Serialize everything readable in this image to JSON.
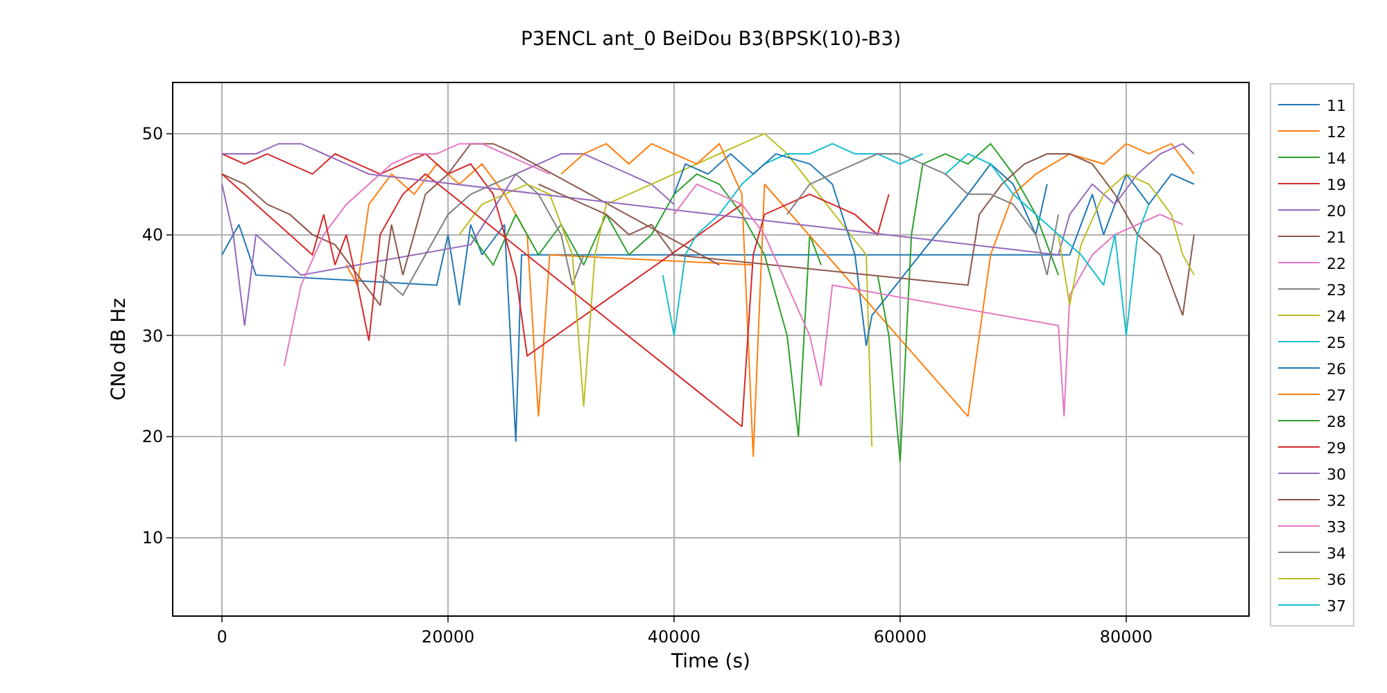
{
  "chart_data": {
    "type": "line",
    "title": "P3ENCL ant_0 BeiDou B3(BPSK(10)-B3)",
    "xlabel": "Time (s)",
    "ylabel": "CNo dB Hz",
    "xlim": [
      -4300,
      90800
    ],
    "ylim": [
      2.3,
      55
    ],
    "xticks": [
      0,
      20000,
      40000,
      60000,
      80000
    ],
    "yticks": [
      10,
      20,
      30,
      40,
      50
    ],
    "grid": true,
    "legend": "right",
    "marker": "none",
    "line_style": "solid",
    "series": [
      {
        "name": "11",
        "color": "#1f77b4",
        "x": [
          0,
          1500,
          3000,
          19000,
          20000,
          21000,
          22000,
          23000,
          25000,
          26000,
          26500,
          75000,
          77000,
          78000,
          80000,
          82000,
          84000,
          86000
        ],
        "values": [
          38,
          41,
          36,
          35,
          40,
          33,
          41,
          38,
          41,
          19.5,
          38,
          38,
          44,
          40,
          46,
          43,
          46,
          45
        ]
      },
      {
        "name": "12",
        "color": "#ff7f0e",
        "x": [
          11000,
          12000,
          13000,
          15000,
          17000,
          19000,
          21000,
          23000,
          25000,
          27000,
          28000,
          29000,
          47000
        ],
        "values": [
          37,
          35,
          43,
          46,
          44,
          47,
          45,
          47,
          44,
          40,
          22,
          38,
          37
        ]
      },
      {
        "name": "14",
        "color": "#2ca02c",
        "x": [
          22000,
          24000,
          26000,
          28000,
          30000,
          32000,
          34000,
          36000,
          38000,
          40000,
          42000,
          44000,
          46000,
          48000,
          50000,
          51000,
          52000,
          53000
        ],
        "values": [
          40,
          37,
          42,
          38,
          41,
          37,
          42,
          38,
          40,
          44,
          46,
          45,
          42,
          38,
          30,
          20,
          40,
          37
        ]
      },
      {
        "name": "19",
        "color": "#d62728",
        "x": [
          0,
          2000,
          4000,
          6000,
          8000,
          10000,
          12000,
          14000,
          16000,
          18000,
          20000,
          22000,
          24000,
          26000,
          27000,
          46000
        ],
        "values": [
          48,
          47,
          48,
          47,
          46,
          48,
          47,
          46,
          47,
          48,
          46,
          47,
          44,
          36,
          28,
          43
        ]
      },
      {
        "name": "20",
        "color": "#9467bd",
        "x": [
          0,
          1000,
          2000,
          3000,
          5000,
          7000,
          22000,
          26000,
          28000,
          30000,
          32000,
          34000,
          36000,
          38000,
          40000
        ],
        "values": [
          45,
          40,
          31,
          40,
          38,
          36,
          39,
          46,
          47,
          48,
          48,
          47,
          46,
          45,
          43
        ]
      },
      {
        "name": "21",
        "color": "#8c564b",
        "x": [
          0,
          2000,
          4000,
          6000,
          8000,
          10000,
          14000,
          15000,
          16000,
          18000,
          20000,
          22000,
          24000,
          26000,
          44000
        ],
        "values": [
          46,
          45,
          43,
          42,
          40,
          39,
          33,
          41,
          36,
          44,
          46,
          49,
          49,
          48,
          37
        ]
      },
      {
        "name": "22",
        "color": "#e377c2",
        "x": [
          5500,
          7000,
          9000,
          11000,
          13000,
          15000,
          17000,
          19000,
          21000,
          23000,
          25000,
          27000,
          29000
        ],
        "values": [
          27,
          35,
          40,
          43,
          45,
          47,
          48,
          48,
          49,
          49,
          48,
          47,
          46
        ]
      },
      {
        "name": "23",
        "color": "#7f7f7f",
        "x": [
          14000,
          16000,
          18000,
          20000,
          22000,
          24000,
          26000,
          28000,
          30000,
          31000,
          32000
        ],
        "values": [
          36,
          34,
          38,
          42,
          44,
          45,
          46,
          44,
          40,
          35,
          38
        ]
      },
      {
        "name": "24",
        "color": "#bcbd22",
        "x": [
          21000,
          23000,
          25000,
          27000,
          29000,
          31000,
          32000,
          33000,
          34000,
          44000,
          46000,
          48000,
          50000,
          57000,
          57500
        ],
        "values": [
          40,
          43,
          44,
          45,
          44,
          38,
          23,
          38,
          43,
          48,
          49,
          50,
          48,
          38,
          19
        ]
      },
      {
        "name": "25",
        "color": "#17becf",
        "x": [
          39000,
          40000,
          41000,
          42000,
          44000,
          46000,
          48000,
          50000,
          52000,
          54000,
          56000,
          58000,
          60000,
          62000
        ],
        "values": [
          36,
          30,
          38,
          40,
          42,
          45,
          47,
          48,
          48,
          49,
          48,
          48,
          47,
          48
        ]
      },
      {
        "name": "26",
        "color": "#1f77b4",
        "x": [
          40000,
          41000,
          43000,
          45000,
          47000,
          49000,
          52000,
          54000,
          56000,
          57000,
          57500,
          66000,
          68000,
          70000,
          72000,
          73000
        ],
        "values": [
          44,
          47,
          46,
          48,
          46,
          48,
          47,
          45,
          38,
          29,
          32,
          44,
          47,
          45,
          40,
          45
        ]
      },
      {
        "name": "27",
        "color": "#ff7f0e",
        "x": [
          30000,
          32000,
          34000,
          36000,
          38000,
          40000,
          42000,
          44000,
          46000,
          47000,
          48000,
          66000,
          67000,
          68000,
          70000,
          72000,
          75000,
          78000,
          80000,
          82000,
          84000,
          86000
        ],
        "values": [
          46,
          48,
          49,
          47,
          49,
          48,
          47,
          49,
          44,
          18,
          45,
          22,
          30,
          38,
          44,
          46,
          48,
          47,
          49,
          48,
          49,
          46
        ]
      },
      {
        "name": "28",
        "color": "#2ca02c",
        "x": [
          58000,
          59000,
          60000,
          61000,
          62000,
          64000,
          66000,
          68000,
          70000,
          72000,
          74000
        ],
        "values": [
          36,
          30,
          17.5,
          40,
          47,
          48,
          47,
          49,
          46,
          42,
          36
        ]
      },
      {
        "name": "29",
        "color": "#d62728",
        "x": [
          0,
          2000,
          4000,
          6000,
          8000,
          9000,
          10000,
          11000,
          12000,
          13000,
          14000,
          16000,
          18000,
          46000,
          47000,
          48000,
          50000,
          52000,
          54000,
          56000,
          58000,
          59000
        ],
        "values": [
          46,
          44,
          42,
          40,
          38,
          42,
          37,
          40,
          35,
          29.5,
          40,
          44,
          46,
          21,
          38,
          42,
          43,
          44,
          43,
          42,
          40,
          44
        ]
      },
      {
        "name": "30",
        "color": "#9467bd",
        "x": [
          0,
          3000,
          5000,
          7000,
          9000,
          11000,
          13000,
          74000,
          75000,
          77000,
          79000,
          81000,
          83000,
          85000,
          86000
        ],
        "values": [
          48,
          48,
          49,
          49,
          48,
          47,
          46,
          38,
          42,
          45,
          43,
          46,
          48,
          49,
          48
        ]
      },
      {
        "name": "32",
        "color": "#8c564b",
        "x": [
          28000,
          30000,
          32000,
          34000,
          36000,
          38000,
          40000,
          66000,
          67000,
          69000,
          71000,
          73000,
          75000,
          77000,
          79000,
          81000,
          83000,
          85000,
          86000
        ],
        "values": [
          45,
          44,
          43,
          42,
          40,
          41,
          38,
          35,
          42,
          45,
          47,
          48,
          48,
          47,
          44,
          40,
          38,
          32,
          40
        ]
      },
      {
        "name": "33",
        "color": "#e377c2",
        "x": [
          40000,
          42000,
          44000,
          46000,
          48000,
          50000,
          52000,
          53000,
          54000,
          74000,
          74500,
          75000,
          77000,
          79000,
          81000,
          83000,
          85000
        ],
        "values": [
          42,
          45,
          44,
          43,
          40,
          35,
          30,
          25,
          35,
          31,
          22,
          34,
          38,
          40,
          41,
          42,
          41
        ]
      },
      {
        "name": "34",
        "color": "#7f7f7f",
        "x": [
          50000,
          52000,
          54000,
          56000,
          58000,
          60000,
          62000,
          64000,
          66000,
          68000,
          70000,
          72000,
          73000,
          74000
        ],
        "values": [
          42,
          45,
          46,
          47,
          48,
          48,
          47,
          46,
          44,
          44,
          43,
          40,
          36,
          42
        ]
      },
      {
        "name": "36",
        "color": "#bcbd22",
        "x": [
          74000,
          75000,
          76000,
          78000,
          80000,
          82000,
          84000,
          85000,
          86000
        ],
        "values": [
          40,
          33,
          39,
          44,
          46,
          45,
          42,
          38,
          36
        ]
      },
      {
        "name": "37",
        "color": "#17becf",
        "x": [
          64000,
          66000,
          68000,
          70000,
          72000,
          74000,
          76000,
          78000,
          79000,
          80000,
          81000,
          82000
        ],
        "values": [
          46,
          48,
          47,
          44,
          42,
          40,
          38,
          35,
          40,
          30,
          40,
          43
        ]
      }
    ]
  }
}
